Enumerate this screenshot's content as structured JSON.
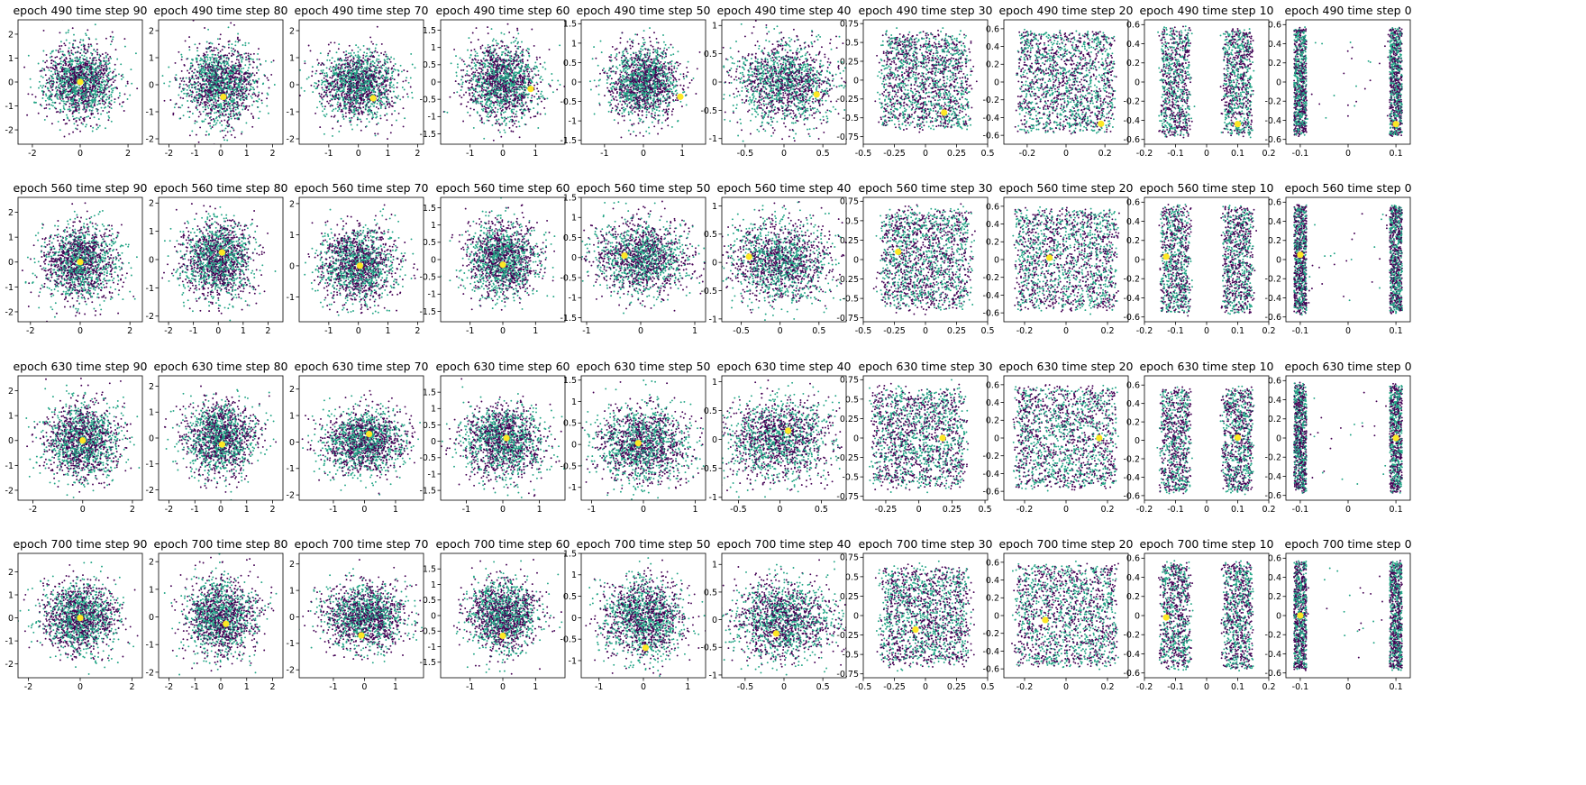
{
  "colors": {
    "class_a": "#440154",
    "class_b": "#21a485",
    "highlight": "#fde725",
    "axes": "#000000"
  },
  "chart_data": {
    "type": "scatter",
    "layout_grid": {
      "rows": 4,
      "cols": 10
    },
    "epochs": [
      490,
      560,
      630,
      700
    ],
    "time_steps": [
      90,
      80,
      70,
      60,
      50,
      40,
      30,
      20,
      10,
      0
    ],
    "title_template": "epoch {e} time step {t}",
    "marker_colors": [
      "#440154",
      "#21a485",
      "#fde725"
    ],
    "highlight_points": [
      [
        [
          0.0,
          0.0
        ],
        [
          0.1,
          -0.45
        ],
        [
          0.5,
          -0.5
        ],
        [
          0.85,
          -0.2
        ],
        [
          0.95,
          -0.38
        ],
        [
          0.42,
          -0.22
        ],
        [
          0.15,
          -0.43
        ],
        [
          0.18,
          -0.47
        ],
        [
          0.1,
          -0.44
        ],
        [
          0.1,
          -0.44
        ]
      ],
      [
        [
          0.0,
          0.0
        ],
        [
          0.15,
          0.25
        ],
        [
          0.05,
          0.0
        ],
        [
          0.0,
          -0.15
        ],
        [
          -0.3,
          0.05
        ],
        [
          -0.4,
          0.1
        ],
        [
          -0.22,
          0.1
        ],
        [
          -0.08,
          0.02
        ],
        [
          -0.13,
          0.03
        ],
        [
          -0.1,
          0.05
        ]
      ],
      [
        [
          0.0,
          0.0
        ],
        [
          0.05,
          -0.25
        ],
        [
          0.15,
          0.3
        ],
        [
          0.1,
          0.1
        ],
        [
          -0.1,
          0.03
        ],
        [
          0.1,
          0.15
        ],
        [
          0.18,
          0.0
        ],
        [
          0.16,
          0.0
        ],
        [
          0.1,
          0.03
        ],
        [
          0.1,
          0.0
        ]
      ],
      [
        [
          0.0,
          0.0
        ],
        [
          0.2,
          -0.25
        ],
        [
          -0.1,
          -0.7
        ],
        [
          0.0,
          -0.65
        ],
        [
          0.05,
          -0.7
        ],
        [
          -0.1,
          -0.25
        ],
        [
          -0.08,
          -0.18
        ],
        [
          -0.1,
          -0.05
        ],
        [
          -0.13,
          -0.02
        ],
        [
          -0.1,
          0.0
        ]
      ]
    ],
    "columns": [
      {
        "time_step": 90,
        "dist": "gauss",
        "sx": 0.75,
        "sy": 0.75,
        "xlim": [
          -2.6,
          2.6
        ],
        "ylim": [
          -2.6,
          2.6
        ],
        "xticks": [
          -2,
          0,
          2
        ],
        "yticks": [
          -2,
          -1,
          0,
          1,
          2
        ],
        "ylim_by_row": [
          [
            -2.6,
            2.6
          ],
          [
            -2.4,
            2.6
          ],
          [
            -2.4,
            2.6
          ],
          [
            -2.6,
            2.8
          ]
        ],
        "xlim_by_row": [
          [
            -2.6,
            2.6
          ],
          [
            -2.5,
            2.5
          ],
          [
            -2.6,
            2.4
          ],
          [
            -2.4,
            2.4
          ]
        ]
      },
      {
        "time_step": 80,
        "dist": "gauss",
        "sx": 0.7,
        "sy": 0.7,
        "xlim": [
          -2.4,
          2.4
        ],
        "ylim": [
          -2.2,
          2.3
        ],
        "xticks": [
          -2,
          -1,
          0,
          1,
          2
        ],
        "yticks": [
          -2,
          -1,
          0,
          1,
          2
        ],
        "ylim_by_row": [
          [
            -2.2,
            2.4
          ],
          [
            -2.2,
            2.2
          ],
          [
            -2.4,
            2.4
          ],
          [
            -2.2,
            2.3
          ]
        ],
        "xlim_by_row": [
          [
            -2.4,
            2.4
          ],
          [
            -2.4,
            2.6
          ],
          [
            -2.4,
            2.4
          ],
          [
            -2.4,
            2.4
          ]
        ]
      },
      {
        "time_step": 70,
        "dist": "gauss",
        "sx": 0.65,
        "sy": 0.62,
        "xlim": [
          -2.1,
          2.1
        ],
        "ylim": [
          -2.2,
          2.4
        ],
        "xticks": [
          -1,
          0,
          1,
          2
        ],
        "yticks": [
          -2,
          -1,
          0,
          1,
          2
        ],
        "ylim_by_row": [
          [
            -2.2,
            2.4
          ],
          [
            -1.8,
            2.2
          ],
          [
            -2.2,
            2.5
          ],
          [
            -2.3,
            2.4
          ]
        ],
        "xlim_by_row": [
          [
            -2.0,
            2.2
          ],
          [
            -2.0,
            2.2
          ],
          [
            -2.1,
            1.9
          ],
          [
            -2.1,
            1.9
          ]
        ]
      },
      {
        "time_step": 60,
        "dist": "gauss",
        "sx": 0.55,
        "sy": 0.55,
        "xlim": [
          -1.9,
          1.9
        ],
        "ylim": [
          -1.8,
          1.8
        ],
        "xticks": [
          -1,
          0,
          1
        ],
        "yticks": [
          -1.5,
          -1.0,
          -0.5,
          0.0,
          0.5,
          1.0,
          1.5
        ],
        "ylim_by_row": [
          [
            -1.8,
            1.8
          ],
          [
            -1.8,
            1.8
          ],
          [
            -1.8,
            2.0
          ],
          [
            -2.0,
            2.0
          ]
        ],
        "xlim_by_row": [
          [
            -1.9,
            1.9
          ],
          [
            -1.9,
            1.9
          ],
          [
            -1.7,
            1.7
          ],
          [
            -1.9,
            1.9
          ]
        ]
      },
      {
        "time_step": 50,
        "dist": "gauss",
        "sx": 0.45,
        "sy": 0.45,
        "xlim": [
          -1.5,
          1.0
        ],
        "ylim": [
          -1.6,
          1.6
        ],
        "xticks": [
          -1,
          0,
          1
        ],
        "yticks": [
          -1.5,
          -1.0,
          -0.5,
          0.0,
          0.5,
          1.0,
          1.5
        ],
        "ylim_by_row": [
          [
            -1.6,
            1.6
          ],
          [
            -1.6,
            1.5
          ],
          [
            -1.3,
            1.6
          ],
          [
            -1.4,
            1.5
          ]
        ],
        "xlim_by_row": [
          [
            -1.6,
            1.6
          ],
          [
            -1.1,
            1.2
          ],
          [
            -1.2,
            1.2
          ],
          [
            -1.4,
            1.4
          ]
        ]
      },
      {
        "time_step": 40,
        "dist": "mixed",
        "sx": 0.33,
        "sy": 0.36,
        "xlim": [
          -0.8,
          0.8
        ],
        "ylim": [
          -1.1,
          1.1
        ],
        "xticks": [
          -0.5,
          0.0,
          0.5
        ],
        "yticks": [
          -1.0,
          -0.5,
          0.0,
          0.5,
          1.0
        ],
        "ylim_by_row": [
          [
            -1.1,
            1.1
          ],
          [
            -1.05,
            1.15
          ],
          [
            -1.05,
            1.1
          ],
          [
            -1.05,
            1.2
          ]
        ],
        "xlim_by_row": [
          [
            -0.8,
            0.8
          ],
          [
            -0.75,
            0.85
          ],
          [
            -0.7,
            0.8
          ],
          [
            -0.8,
            0.8
          ]
        ]
      },
      {
        "time_step": 30,
        "dist": "box1",
        "sx": 0.26,
        "sy": 0.6,
        "xlim": [
          -0.5,
          0.5
        ],
        "ylim": [
          -0.85,
          0.8
        ],
        "xticks": [
          -0.5,
          -0.25,
          0.0,
          0.25,
          0.5
        ],
        "yticks": [
          -0.75,
          -0.5,
          -0.25,
          0.0,
          0.25,
          0.5,
          0.75
        ],
        "ylim_by_row": [
          [
            -0.85,
            0.8
          ],
          [
            -0.8,
            0.8
          ],
          [
            -0.8,
            0.8
          ],
          [
            -0.8,
            0.8
          ]
        ],
        "xlim_by_row": [
          [
            -0.5,
            0.5
          ],
          [
            -0.5,
            0.5
          ],
          [
            -0.42,
            0.52
          ],
          [
            -0.5,
            0.5
          ]
        ],
        "xticks_by_row": [
          [
            -0.5,
            -0.25,
            0.0,
            0.25,
            0.5
          ],
          [
            -0.5,
            -0.25,
            0.0,
            0.25,
            0.5
          ],
          [
            -0.25,
            0.0,
            0.25,
            0.5
          ],
          [
            -0.5,
            -0.25,
            0.0,
            0.25,
            0.5
          ]
        ]
      },
      {
        "time_step": 20,
        "dist": "box2",
        "sx": 0.2,
        "sy": 0.6,
        "xlim": [
          -0.3,
          0.3
        ],
        "ylim": [
          -0.7,
          0.7
        ],
        "xticks": [
          -0.2,
          0.0,
          0.2
        ],
        "yticks": [
          -0.6,
          -0.4,
          -0.2,
          0.0,
          0.2,
          0.4,
          0.6
        ],
        "ylim_by_row": [
          [
            -0.7,
            0.7
          ],
          [
            -0.7,
            0.7
          ],
          [
            -0.7,
            0.7
          ],
          [
            -0.7,
            0.7
          ]
        ],
        "xlim_by_row": [
          [
            -0.32,
            0.32
          ],
          [
            -0.3,
            0.3
          ],
          [
            -0.3,
            0.3
          ],
          [
            -0.3,
            0.3
          ]
        ]
      },
      {
        "time_step": 10,
        "dist": "two_col",
        "sx": 0.035,
        "sy": 0.55,
        "xlim": [
          -0.2,
          0.2
        ],
        "ylim": [
          -0.65,
          0.65
        ],
        "xticks": [
          -0.2,
          -0.1,
          0.0,
          0.1,
          0.2
        ],
        "yticks": [
          -0.6,
          -0.4,
          -0.2,
          0.0,
          0.2,
          0.4,
          0.6
        ],
        "ylim_by_row": [
          [
            -0.65,
            0.65
          ],
          [
            -0.65,
            0.65
          ],
          [
            -0.65,
            0.7
          ],
          [
            -0.65,
            0.65
          ]
        ],
        "xlim_by_row": [
          [
            -0.2,
            0.2
          ],
          [
            -0.2,
            0.2
          ],
          [
            -0.2,
            0.2
          ],
          [
            -0.2,
            0.2
          ]
        ]
      },
      {
        "time_step": 0,
        "dist": "two_thin",
        "sx": 0.012,
        "sy": 0.55,
        "xlim": [
          -0.13,
          0.13
        ],
        "ylim": [
          -0.65,
          0.65
        ],
        "xticks": [
          -0.1,
          0.0,
          0.1
        ],
        "yticks": [
          -0.6,
          -0.4,
          -0.2,
          0.0,
          0.2,
          0.4,
          0.6
        ],
        "ylim_by_row": [
          [
            -0.65,
            0.65
          ],
          [
            -0.65,
            0.65
          ],
          [
            -0.65,
            0.65
          ],
          [
            -0.65,
            0.65
          ]
        ],
        "xlim_by_row": [
          [
            -0.13,
            0.13
          ],
          [
            -0.13,
            0.13
          ],
          [
            -0.13,
            0.13
          ],
          [
            -0.13,
            0.13
          ]
        ]
      }
    ]
  }
}
